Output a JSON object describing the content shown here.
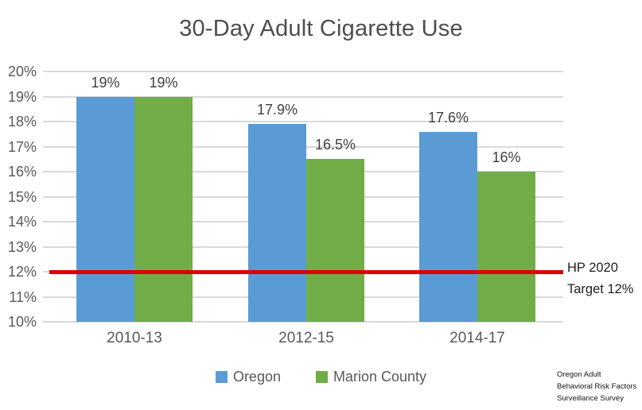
{
  "title": "30-Day Adult Cigarette Use",
  "chart_data": {
    "type": "bar",
    "title": "30-Day Adult Cigarette Use",
    "categories": [
      "2010-13",
      "2012-15",
      "2014-17"
    ],
    "series": [
      {
        "name": "Oregon",
        "color": "#5B9BD5",
        "values": [
          19,
          17.9,
          17.6
        ],
        "value_labels": [
          "19%",
          "17.9%",
          "17.6%"
        ]
      },
      {
        "name": "Marion County",
        "color": "#70AD47",
        "values": [
          19,
          16.5,
          16
        ],
        "value_labels": [
          "19%",
          "16.5%",
          "16%"
        ]
      }
    ],
    "xlabel": "",
    "ylabel": "",
    "y_axis": {
      "min": 10,
      "max": 20,
      "step": 1,
      "tick_suffix": "%"
    },
    "ylim": [
      10,
      20
    ],
    "grid": true,
    "legend_position": "bottom",
    "target_line": {
      "value": 12,
      "color": "#DE0000",
      "label_lines": [
        "HP 2020",
        "Target 12%"
      ]
    }
  },
  "source_note": {
    "lines": [
      "Oregon Adult",
      "Behavioral Risk Factors",
      "Surveillance Survey"
    ]
  }
}
